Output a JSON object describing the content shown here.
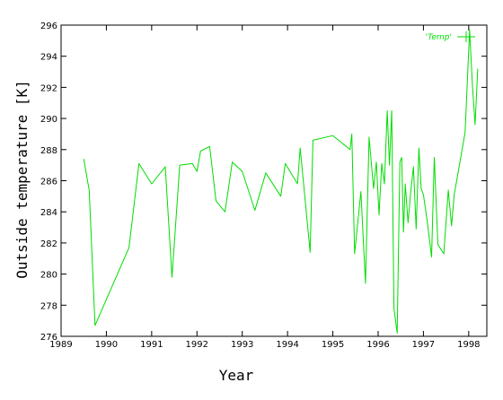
{
  "chart_data": {
    "type": "line",
    "title": "",
    "xlabel": "Year",
    "ylabel": "Outside temperature [K]",
    "xlim": [
      1989,
      1998.4
    ],
    "ylim": [
      276,
      296
    ],
    "grid": false,
    "legend_position": "top-right",
    "x_ticks": [
      "1989",
      "1990",
      "1991",
      "1992",
      "1993",
      "1994",
      "1995",
      "1996",
      "1997",
      "1998"
    ],
    "y_ticks": [
      "276",
      "278",
      "280",
      "282",
      "284",
      "286",
      "288",
      "290",
      "292",
      "294",
      "296"
    ],
    "series": [
      {
        "name": "'Temp'",
        "color": "#00dd00",
        "x": [
          1989.5,
          1989.62,
          1989.75,
          1990.5,
          1990.72,
          1991.0,
          1991.3,
          1991.45,
          1991.62,
          1991.9,
          1992.0,
          1992.08,
          1992.28,
          1992.42,
          1992.62,
          1992.78,
          1993.0,
          1993.28,
          1993.52,
          1993.85,
          1993.95,
          1994.22,
          1994.28,
          1994.5,
          1994.56,
          1995.0,
          1995.38,
          1995.42,
          1995.48,
          1995.62,
          1995.72,
          1995.8,
          1995.9,
          1995.96,
          1996.02,
          1996.08,
          1996.14,
          1996.2,
          1996.25,
          1996.3,
          1996.35,
          1996.42,
          1996.48,
          1996.52,
          1996.56,
          1996.6,
          1996.66,
          1996.72,
          1996.78,
          1996.84,
          1996.9,
          1996.95,
          1997.0,
          1997.08,
          1997.18,
          1997.24,
          1997.32,
          1997.45,
          1997.55,
          1997.62,
          1997.68,
          1997.92,
          1998.02,
          1998.08,
          1998.14,
          1998.2
        ],
        "y": [
          287.4,
          285.4,
          276.7,
          281.7,
          287.1,
          285.8,
          286.9,
          279.8,
          287.0,
          287.1,
          286.6,
          287.9,
          288.2,
          284.7,
          284.0,
          287.2,
          286.6,
          284.1,
          286.5,
          285.0,
          287.1,
          285.8,
          288.1,
          281.4,
          288.6,
          288.9,
          288.0,
          289.0,
          281.3,
          285.3,
          279.4,
          288.8,
          285.5,
          287.2,
          283.8,
          287.1,
          285.8,
          290.5,
          287.0,
          290.5,
          277.8,
          276.2,
          287.2,
          287.5,
          282.7,
          285.8,
          283.3,
          285.3,
          286.9,
          282.9,
          288.1,
          285.5,
          285.1,
          283.5,
          281.1,
          287.5,
          281.9,
          281.3,
          285.4,
          283.1,
          285.1,
          289.1,
          295.7,
          292.2,
          289.6,
          293.2
        ]
      }
    ]
  }
}
